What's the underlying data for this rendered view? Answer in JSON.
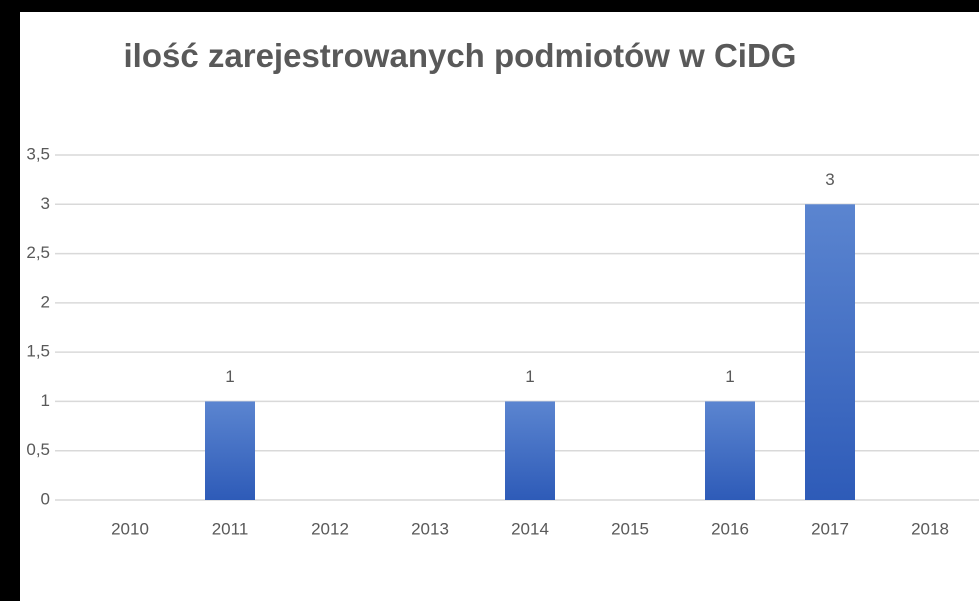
{
  "chart_data": {
    "type": "bar",
    "title": "ilość zarejestrowanych  podmiotów w CiDG",
    "categories": [
      "2010",
      "2011",
      "2012",
      "2013",
      "2014",
      "2015",
      "2016",
      "2017",
      "2018"
    ],
    "values": [
      0,
      1,
      0,
      0,
      1,
      0,
      1,
      3,
      0
    ],
    "color": "#4472c4",
    "ylim": [
      0,
      3.5
    ],
    "yticks": [
      0,
      {
        "value": 0.5,
        "label": "0,5"
      },
      1,
      {
        "value": 1.5,
        "label": "1,5"
      },
      2,
      {
        "value": 2.5,
        "label": "2,5"
      },
      3,
      {
        "value": 3.5,
        "label": "3,5"
      }
    ],
    "grid": true
  }
}
